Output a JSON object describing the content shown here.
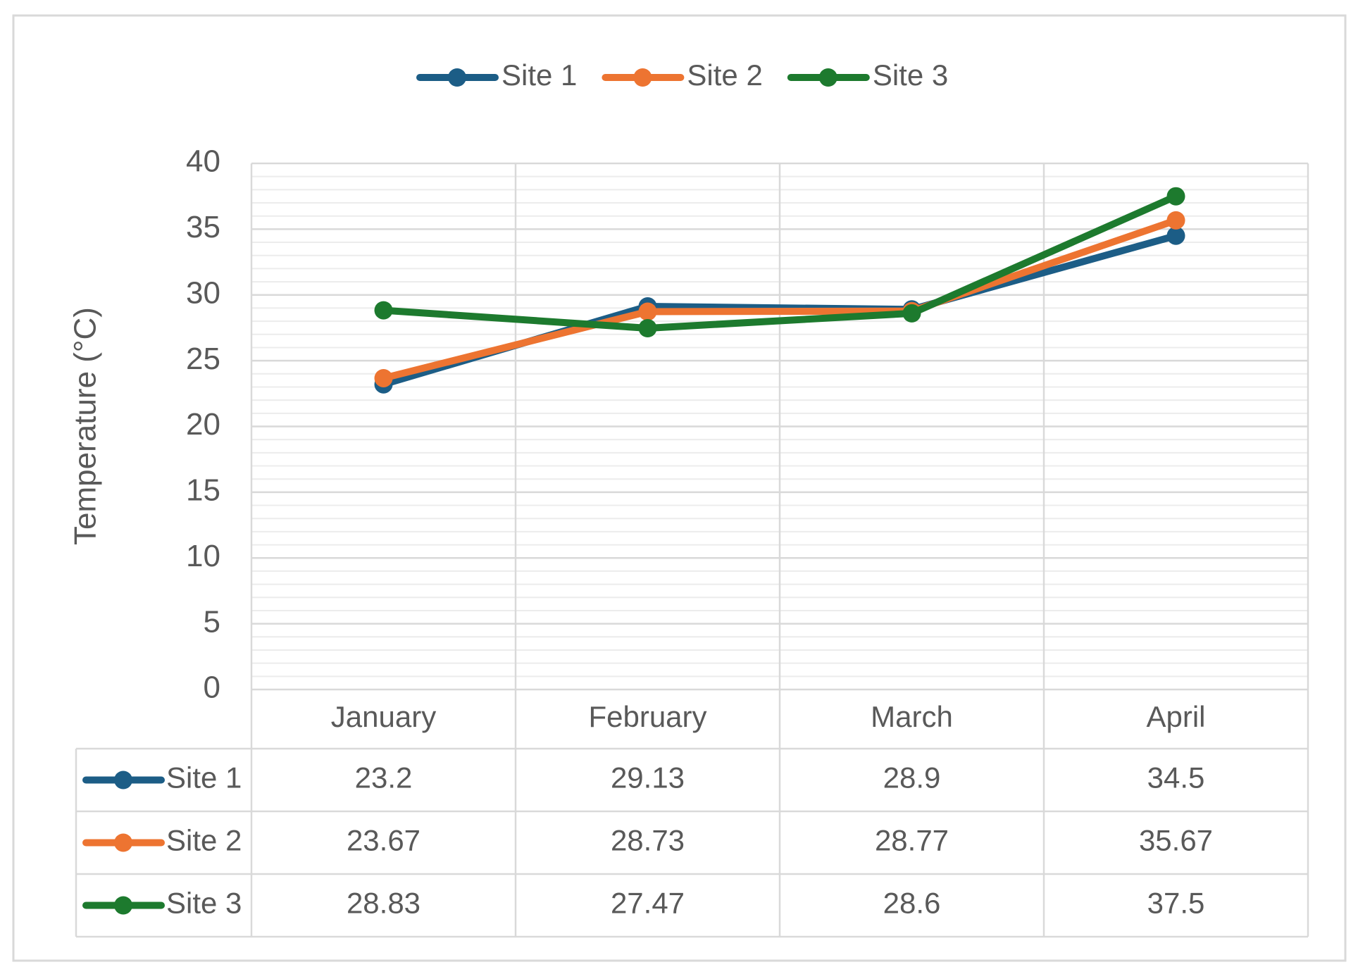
{
  "chart_data": {
    "type": "line",
    "y_label": "Temperature (°C)",
    "categories": [
      "January",
      "February",
      "March",
      "April"
    ],
    "series": [
      {
        "name": "Site 1",
        "color": "#1c5d86",
        "values": [
          23.2,
          29.13,
          28.9,
          34.5
        ]
      },
      {
        "name": "Site 2",
        "color": "#ed7431",
        "values": [
          23.67,
          28.73,
          28.77,
          35.67
        ]
      },
      {
        "name": "Site 3",
        "color": "#1d7a2e",
        "values": [
          28.83,
          27.47,
          28.6,
          37.5
        ]
      }
    ],
    "ylim": [
      0,
      40
    ],
    "yticks": [
      0,
      5,
      10,
      15,
      20,
      25,
      30,
      35,
      40
    ],
    "grid": true,
    "minor_grid": true,
    "legend": "top",
    "data_table": true
  }
}
